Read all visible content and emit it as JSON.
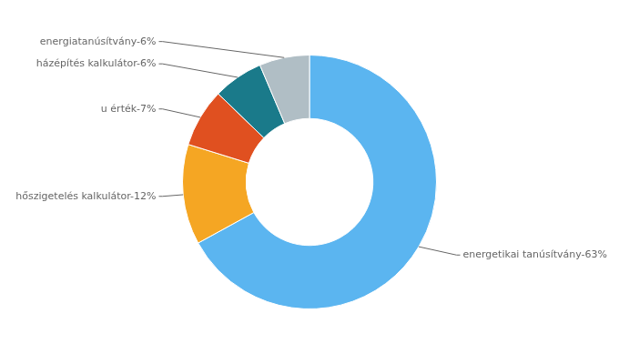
{
  "chart_data": {
    "type": "doughnut",
    "categories": [
      "energetikai tanúsítvány",
      "hőszigetelés kalkulátor",
      "u érték",
      "házépítés kalkulátor",
      "energiatanúsítvány"
    ],
    "values": [
      63,
      12,
      7,
      6,
      6
    ],
    "value_labels": [
      "energetikai tanúsítvány-63%",
      "hőszigetelés kalkulátor-12%",
      "u érték-7%",
      "házépítés kalkulátor-6%",
      "energiatanúsítvány-6%"
    ],
    "colors": [
      "#5BB5F0",
      "#F5A623",
      "#E05020",
      "#1A7A8A",
      "#B0BEC5"
    ],
    "data_labels": true
  }
}
